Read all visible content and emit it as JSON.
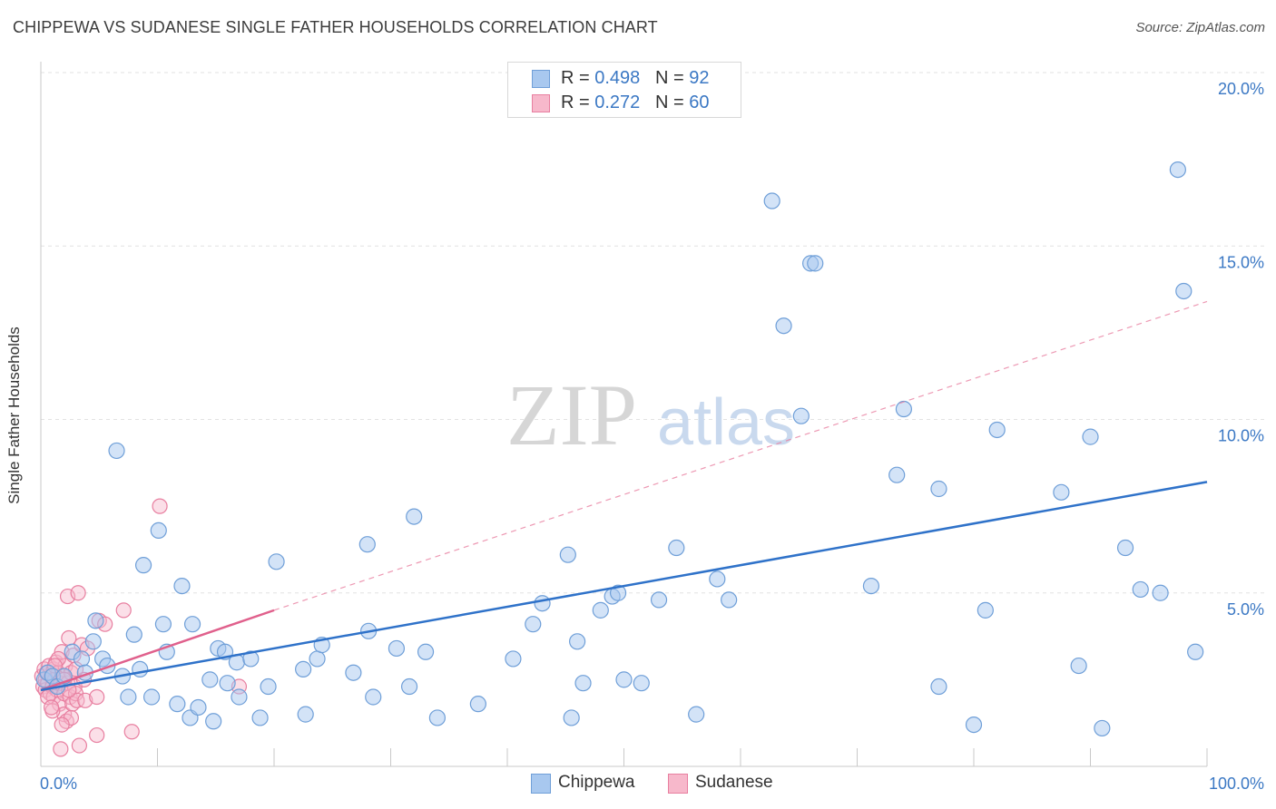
{
  "title": "CHIPPEWA VS SUDANESE SINGLE FATHER HOUSEHOLDS CORRELATION CHART",
  "source": "Source: ZipAtlas.com",
  "watermark": {
    "zip": "ZIP",
    "atlas": "atlas"
  },
  "legend_top": {
    "rows": [
      {
        "r_label": "R = ",
        "r_value": "0.498",
        "n_label": "N = ",
        "n_value": "92"
      },
      {
        "r_label": "R = ",
        "r_value": "0.272",
        "n_label": "N = ",
        "n_value": "60"
      }
    ]
  },
  "legend_bottom": {
    "items": [
      "Chippewa",
      "Sudanese"
    ]
  },
  "colors": {
    "chippewa_fill": "#a8c8ef",
    "chippewa_stroke": "#6f9fd8",
    "chippewa_line": "#2f72c9",
    "sudanese_fill": "#f7b8cb",
    "sudanese_stroke": "#e87fa0",
    "sudanese_line": "#e0608c",
    "tick_label": "#3b78c4",
    "grid": "#e2e2e2"
  },
  "chart_data": {
    "type": "scatter",
    "title": "CHIPPEWA VS SUDANESE SINGLE FATHER HOUSEHOLDS CORRELATION CHART",
    "xlabel": "",
    "ylabel": "Single Father Households",
    "xlim": [
      0,
      100
    ],
    "ylim": [
      0,
      20
    ],
    "x_tick_labels": [
      "0.0%",
      "100.0%"
    ],
    "y_ticks": [
      5,
      10,
      15,
      20
    ],
    "y_tick_labels": [
      "5.0%",
      "10.0%",
      "15.0%",
      "20.0%"
    ],
    "grid": "horizontal dashed",
    "legend_position": "top-center",
    "series": [
      {
        "name": "Chippewa",
        "R": 0.498,
        "N": 92,
        "trend": {
          "x": [
            0,
            100
          ],
          "y": [
            2.2,
            8.2
          ],
          "style": "solid"
        },
        "points": [
          [
            0.3,
            2.5
          ],
          [
            0.6,
            2.7
          ],
          [
            1.0,
            2.6
          ],
          [
            1.4,
            2.3
          ],
          [
            2.0,
            2.6
          ],
          [
            2.7,
            3.3
          ],
          [
            3.5,
            3.1
          ],
          [
            3.8,
            2.7
          ],
          [
            4.5,
            3.6
          ],
          [
            4.7,
            4.2
          ],
          [
            5.3,
            3.1
          ],
          [
            5.7,
            2.9
          ],
          [
            6.5,
            9.1
          ],
          [
            7.0,
            2.6
          ],
          [
            7.5,
            2.0
          ],
          [
            8.0,
            3.8
          ],
          [
            8.5,
            2.8
          ],
          [
            8.8,
            5.8
          ],
          [
            9.5,
            2.0
          ],
          [
            10.1,
            6.8
          ],
          [
            10.5,
            4.1
          ],
          [
            10.8,
            3.3
          ],
          [
            11.7,
            1.8
          ],
          [
            12.1,
            5.2
          ],
          [
            12.8,
            1.4
          ],
          [
            13.0,
            4.1
          ],
          [
            13.5,
            1.7
          ],
          [
            14.5,
            2.5
          ],
          [
            14.8,
            1.3
          ],
          [
            15.2,
            3.4
          ],
          [
            15.8,
            3.3
          ],
          [
            16.0,
            2.4
          ],
          [
            16.8,
            3.0
          ],
          [
            17.0,
            2.0
          ],
          [
            18.0,
            3.1
          ],
          [
            18.8,
            1.4
          ],
          [
            19.5,
            2.3
          ],
          [
            20.2,
            5.9
          ],
          [
            22.5,
            2.8
          ],
          [
            22.7,
            1.5
          ],
          [
            23.7,
            3.1
          ],
          [
            24.1,
            3.5
          ],
          [
            26.8,
            2.7
          ],
          [
            28.0,
            6.4
          ],
          [
            28.1,
            3.9
          ],
          [
            28.5,
            2.0
          ],
          [
            30.5,
            3.4
          ],
          [
            31.6,
            2.3
          ],
          [
            32.0,
            7.2
          ],
          [
            33.0,
            3.3
          ],
          [
            34.0,
            1.4
          ],
          [
            37.5,
            1.8
          ],
          [
            40.5,
            3.1
          ],
          [
            42.2,
            4.1
          ],
          [
            43.0,
            4.7
          ],
          [
            45.2,
            6.1
          ],
          [
            45.5,
            1.4
          ],
          [
            46.0,
            3.6
          ],
          [
            46.5,
            2.4
          ],
          [
            48.0,
            4.5
          ],
          [
            49.0,
            4.9
          ],
          [
            49.5,
            5.0
          ],
          [
            50.0,
            2.5
          ],
          [
            51.5,
            2.4
          ],
          [
            53.0,
            4.8
          ],
          [
            54.5,
            6.3
          ],
          [
            56.2,
            1.5
          ],
          [
            58.0,
            5.4
          ],
          [
            59.0,
            4.8
          ],
          [
            62.7,
            16.3
          ],
          [
            63.7,
            12.7
          ],
          [
            66.0,
            14.5
          ],
          [
            66.4,
            14.5
          ],
          [
            65.2,
            10.1
          ],
          [
            71.2,
            5.2
          ],
          [
            73.4,
            8.4
          ],
          [
            74.0,
            10.3
          ],
          [
            77.0,
            8.0
          ],
          [
            77.0,
            2.3
          ],
          [
            80.0,
            1.2
          ],
          [
            81.0,
            4.5
          ],
          [
            82.0,
            9.7
          ],
          [
            87.5,
            7.9
          ],
          [
            89.0,
            2.9
          ],
          [
            90.0,
            9.5
          ],
          [
            91.0,
            1.1
          ],
          [
            93.0,
            6.3
          ],
          [
            94.3,
            5.1
          ],
          [
            96.0,
            5.0
          ],
          [
            97.5,
            17.2
          ],
          [
            98.0,
            13.7
          ],
          [
            99.0,
            3.3
          ]
        ]
      },
      {
        "name": "Sudanese",
        "R": 0.272,
        "N": 60,
        "trend": {
          "x": [
            0,
            20
          ],
          "y": [
            2.2,
            4.5
          ],
          "style": "solid"
        },
        "trend_extended": {
          "x": [
            20,
            100
          ],
          "y": [
            4.5,
            13.4
          ],
          "style": "dashed"
        },
        "points": [
          [
            0.1,
            2.6
          ],
          [
            0.2,
            2.3
          ],
          [
            0.3,
            2.8
          ],
          [
            0.4,
            2.5
          ],
          [
            0.4,
            2.2
          ],
          [
            0.5,
            2.7
          ],
          [
            0.6,
            2.4
          ],
          [
            0.7,
            2.9
          ],
          [
            0.8,
            2.1
          ],
          [
            0.9,
            2.6
          ],
          [
            1.0,
            2.3
          ],
          [
            1.1,
            2.8
          ],
          [
            1.1,
            2.0
          ],
          [
            1.2,
            2.5
          ],
          [
            1.3,
            3.0
          ],
          [
            1.4,
            2.2
          ],
          [
            1.5,
            2.7
          ],
          [
            1.6,
            1.8
          ],
          [
            1.7,
            2.4
          ],
          [
            1.7,
            0.5
          ],
          [
            1.8,
            3.3
          ],
          [
            1.9,
            2.6
          ],
          [
            2.0,
            1.5
          ],
          [
            2.0,
            2.1
          ],
          [
            2.1,
            2.9
          ],
          [
            2.2,
            1.3
          ],
          [
            2.3,
            2.4
          ],
          [
            2.3,
            4.9
          ],
          [
            2.4,
            3.7
          ],
          [
            2.5,
            2.0
          ],
          [
            2.6,
            2.7
          ],
          [
            2.7,
            1.8
          ],
          [
            2.8,
            3.2
          ],
          [
            2.9,
            2.3
          ],
          [
            3.0,
            2.1
          ],
          [
            3.1,
            1.9
          ],
          [
            3.2,
            5.0
          ],
          [
            3.3,
            0.6
          ],
          [
            3.5,
            3.5
          ],
          [
            3.7,
            2.5
          ],
          [
            3.8,
            1.9
          ],
          [
            4.0,
            3.4
          ],
          [
            4.8,
            0.9
          ],
          [
            4.8,
            2.0
          ],
          [
            5.0,
            4.2
          ],
          [
            5.5,
            4.1
          ],
          [
            7.1,
            4.5
          ],
          [
            7.8,
            1.0
          ],
          [
            10.2,
            7.5
          ],
          [
            17.0,
            2.3
          ],
          [
            0.6,
            2.0
          ],
          [
            1.0,
            1.6
          ],
          [
            1.5,
            3.1
          ],
          [
            2.0,
            2.5
          ],
          [
            2.6,
            1.4
          ],
          [
            1.2,
            2.9
          ],
          [
            0.9,
            1.7
          ],
          [
            2.4,
            2.2
          ],
          [
            1.8,
            1.2
          ],
          [
            3.0,
            2.8
          ]
        ]
      }
    ]
  }
}
